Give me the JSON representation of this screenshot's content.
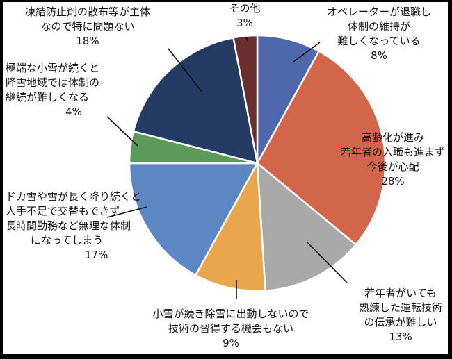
{
  "chart_data": {
    "type": "pie",
    "title": "",
    "slices": [
      {
        "label": [
          "オペレーターが退職し",
          "体制の維持が",
          "難しくなっている"
        ],
        "value": 8,
        "value_text": "8%",
        "color": "#4f68ad"
      },
      {
        "label": [
          "高齢化が進み",
          "若年者の入職も進まず",
          "今後が心配"
        ],
        "value": 28,
        "value_text": "28%",
        "color": "#d3654a"
      },
      {
        "label": [
          "若年者がいても",
          "熟練した運転技術",
          "の伝承が難しい"
        ],
        "value": 13,
        "value_text": "13%",
        "color": "#a9a9a9"
      },
      {
        "label": [
          "小雪が続き除雪に出動しないので",
          "技術の習得する機会もない"
        ],
        "value": 9,
        "value_text": "9%",
        "color": "#e9a64a"
      },
      {
        "label": [
          "ドカ雪や雪が長く降り続くと",
          "人手不足で交替もできず",
          "長時間勤務など無理な体制",
          "になってしまう"
        ],
        "value": 17,
        "value_text": "17%",
        "color": "#5b88c2"
      },
      {
        "label": [
          "極端な小雪が続くと",
          "降雪地域では体制の",
          "継続が難しくなる"
        ],
        "value": 4,
        "value_text": "4%",
        "color": "#5c9a5a"
      },
      {
        "label": [
          "凍結防止剤の散布等が主体",
          "なので特に問題ない"
        ],
        "value": 18,
        "value_text": "18%",
        "color": "#243c63"
      },
      {
        "label": [
          "その他"
        ],
        "value": 3,
        "value_text": "3%",
        "color": "#6b2f2f"
      }
    ]
  }
}
